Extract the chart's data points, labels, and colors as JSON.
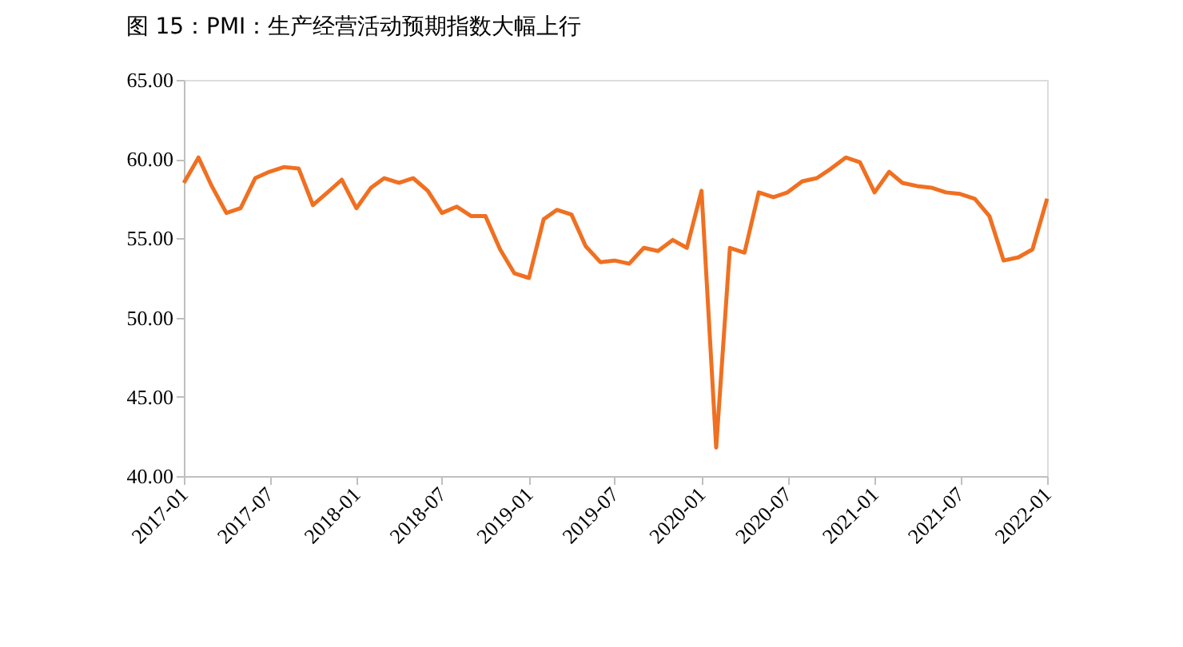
{
  "chart_data": {
    "type": "line",
    "title": "图 15：PMI：生产经营活动预期指数大幅上行",
    "x": [
      "2017-01",
      "2017-02",
      "2017-03",
      "2017-04",
      "2017-05",
      "2017-06",
      "2017-07",
      "2017-08",
      "2017-09",
      "2017-10",
      "2017-11",
      "2017-12",
      "2018-01",
      "2018-02",
      "2018-03",
      "2018-04",
      "2018-05",
      "2018-06",
      "2018-07",
      "2018-08",
      "2018-09",
      "2018-10",
      "2018-11",
      "2018-12",
      "2019-01",
      "2019-02",
      "2019-03",
      "2019-04",
      "2019-05",
      "2019-06",
      "2019-07",
      "2019-08",
      "2019-09",
      "2019-10",
      "2019-11",
      "2019-12",
      "2020-01",
      "2020-02",
      "2020-03",
      "2020-04",
      "2020-05",
      "2020-06",
      "2020-07",
      "2020-08",
      "2020-09",
      "2020-10",
      "2020-11",
      "2020-12",
      "2021-01",
      "2021-02",
      "2021-03",
      "2021-04",
      "2021-05",
      "2021-06",
      "2021-07",
      "2021-08",
      "2021-09",
      "2021-10",
      "2021-11",
      "2021-12",
      "2022-01"
    ],
    "series": [
      {
        "color": "#f07021",
        "line_style": "solid",
        "marker": "none",
        "values": [
          58.5,
          60.1,
          58.3,
          56.6,
          56.9,
          58.8,
          59.2,
          59.5,
          59.4,
          57.1,
          57.9,
          58.7,
          56.9,
          58.2,
          58.8,
          58.5,
          58.8,
          58.0,
          56.6,
          57.0,
          56.4,
          56.4,
          54.3,
          52.8,
          52.5,
          56.2,
          56.8,
          56.5,
          54.5,
          53.5,
          53.6,
          53.4,
          54.4,
          54.2,
          54.9,
          54.4,
          58.0,
          41.8,
          54.4,
          54.1,
          57.9,
          57.6,
          57.9,
          58.6,
          58.8,
          59.4,
          60.1,
          59.8,
          57.9,
          59.2,
          58.5,
          58.3,
          58.2,
          57.9,
          57.8,
          57.5,
          56.4,
          53.6,
          53.8,
          54.3,
          57.5
        ]
      }
    ],
    "xlim": [
      "2017-01",
      "2022-01"
    ],
    "xticks": [
      "2017-01",
      "2017-07",
      "2018-01",
      "2018-07",
      "2019-01",
      "2019-07",
      "2020-01",
      "2020-07",
      "2021-01",
      "2021-07",
      "2022-01"
    ],
    "ylim": [
      40,
      65
    ],
    "yticks": [
      {
        "value": 40,
        "label": "40.00"
      },
      {
        "value": 45,
        "label": "45.00"
      },
      {
        "value": 50,
        "label": "50.00"
      },
      {
        "value": 55,
        "label": "55.00"
      },
      {
        "value": 60,
        "label": "60.00"
      },
      {
        "value": 65,
        "label": "65.00"
      }
    ],
    "grid": false,
    "legend": false
  }
}
